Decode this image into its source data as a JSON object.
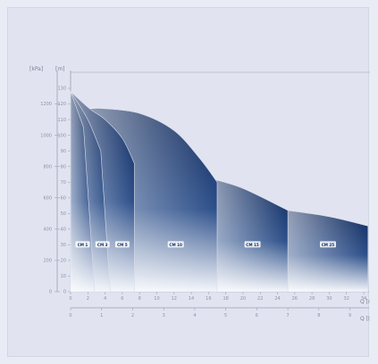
{
  "chart_data": {
    "type": "area",
    "title": "",
    "left_axis_units": {
      "pressure": "[kPa]",
      "head": "[m]"
    },
    "bottom_axis_units": {
      "flow_m3h": "Q [m³/h]",
      "flow_ls": "Q [l/s]"
    },
    "head_ticks": [
      "0",
      "10",
      "20",
      "30",
      "40",
      "50",
      "60",
      "70",
      "80",
      "90",
      "100",
      "110",
      "120",
      "130"
    ],
    "pressure_ticks": [
      "0",
      "200",
      "400",
      "600",
      "800",
      "1000",
      "1200"
    ],
    "flow_m3h_ticks": [
      "0",
      "2",
      "4",
      "6",
      "8",
      "10",
      "12",
      "14",
      "16",
      "18",
      "20",
      "22",
      "24",
      "26",
      "28",
      "30",
      "32",
      "34"
    ],
    "flow_ls_ticks": [
      "0",
      "1",
      "2",
      "3",
      "4",
      "5",
      "6",
      "7",
      "8",
      "9"
    ],
    "xlim": [
      0,
      34
    ],
    "ylim": [
      0,
      130
    ],
    "series": [
      {
        "name": "CM 1",
        "q_max": 2.8,
        "points": [
          [
            0,
            128
          ],
          [
            1.5,
            105
          ],
          [
            2.8,
            0
          ]
        ]
      },
      {
        "name": "CM 3",
        "q_max": 4.6,
        "points": [
          [
            0,
            128
          ],
          [
            2,
            110
          ],
          [
            3.5,
            90
          ],
          [
            4.6,
            0
          ]
        ]
      },
      {
        "name": "CM 5",
        "q_max": 7.4,
        "points": [
          [
            0,
            128
          ],
          [
            2.2,
            117
          ],
          [
            4,
            110
          ],
          [
            6,
            98
          ],
          [
            7.4,
            82
          ],
          [
            7.4,
            0
          ]
        ]
      },
      {
        "name": "CM 10",
        "q_max": 17.0,
        "points": [
          [
            2.2,
            117
          ],
          [
            4,
            117
          ],
          [
            8,
            114
          ],
          [
            12,
            103
          ],
          [
            15,
            85
          ],
          [
            17,
            70
          ],
          [
            17,
            0
          ]
        ]
      },
      {
        "name": "CM 15",
        "q_max": 25.2,
        "points": [
          [
            16.5,
            72
          ],
          [
            20,
            66
          ],
          [
            25.2,
            52
          ],
          [
            25.2,
            0
          ]
        ]
      },
      {
        "name": "CM 25",
        "q_max": 34.5,
        "points": [
          [
            25.2,
            52
          ],
          [
            30,
            48
          ],
          [
            34.5,
            42
          ],
          [
            34.5,
            0
          ]
        ]
      }
    ],
    "range_labels": [
      "CM 1",
      "CM 3",
      "CM 5",
      "CM 10",
      "CM 15",
      "CM 25"
    ],
    "colors": {
      "fill_top": "#0b2558",
      "fill_mid": "#2c4f8a",
      "fill_bottom": "#f4f6fb",
      "axis": "#9aa0b6"
    }
  }
}
